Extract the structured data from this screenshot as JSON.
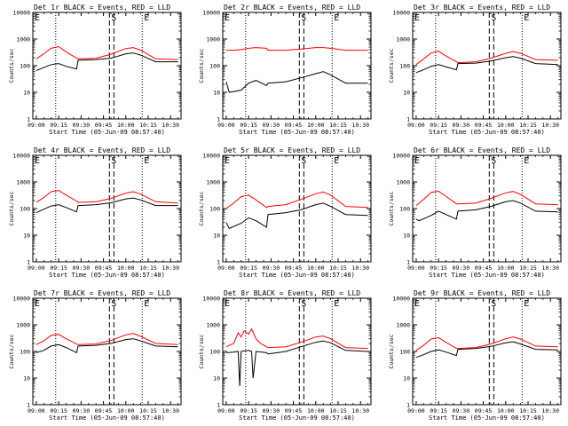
{
  "xlabel": "Start Time (05-Jun-09 08:57:40)",
  "ylabel": "Counts/sec",
  "x_tick_labels": [
    "09:00",
    "09:15",
    "09:30",
    "09:45",
    "10:00",
    "10:15",
    "10:30"
  ],
  "y_tick_labels": [
    "1",
    "10",
    "100",
    "1000",
    "10000"
  ],
  "markers": {
    "start": "S",
    "end": "E"
  },
  "colors": {
    "events": "#000000",
    "lld": "#ff0000"
  },
  "chart_data": [
    {
      "type": "line",
      "title": "Det 1r BLACK = Events, RED = LLD",
      "yscale": "log",
      "ylim": [
        1,
        10000
      ],
      "xlim": [
        "08:57:40",
        "10:37:00"
      ],
      "series": [
        {
          "name": "Events",
          "x": [
            "09:00",
            "09:05",
            "09:10",
            "09:15",
            "09:20",
            "09:27",
            "09:28",
            "09:40",
            "09:50",
            "10:00",
            "10:05",
            "10:10",
            "10:20",
            "10:35"
          ],
          "values": [
            65,
            85,
            110,
            120,
            95,
            75,
            160,
            170,
            190,
            280,
            300,
            250,
            140,
            140
          ]
        },
        {
          "name": "LLD",
          "x": [
            "09:00",
            "09:05",
            "09:10",
            "09:15",
            "09:20",
            "09:27",
            "09:28",
            "09:40",
            "09:50",
            "10:00",
            "10:05",
            "10:10",
            "10:20",
            "10:35"
          ],
          "values": [
            180,
            280,
            450,
            520,
            330,
            190,
            180,
            190,
            270,
            440,
            480,
            380,
            180,
            170
          ]
        }
      ]
    },
    {
      "type": "line",
      "title": "Det 2r BLACK = Events, RED = LLD",
      "yscale": "log",
      "ylim": [
        1,
        10000
      ],
      "xlim": [
        "08:57:40",
        "10:37:00"
      ],
      "series": [
        {
          "name": "Events",
          "x": [
            "09:00",
            "09:02",
            "09:10",
            "09:15",
            "09:20",
            "09:27",
            "09:28",
            "09:40",
            "09:50",
            "10:00",
            "10:05",
            "10:10",
            "10:20",
            "10:35"
          ],
          "values": [
            25,
            10,
            12,
            22,
            28,
            18,
            22,
            25,
            35,
            50,
            60,
            45,
            22,
            22
          ]
        },
        {
          "name": "LLD",
          "x": [
            "09:00",
            "09:05",
            "09:10",
            "09:15",
            "09:20",
            "09:27",
            "09:28",
            "09:40",
            "09:50",
            "10:00",
            "10:05",
            "10:10",
            "10:20",
            "10:35"
          ],
          "values": [
            380,
            380,
            400,
            450,
            480,
            450,
            380,
            380,
            420,
            480,
            480,
            450,
            380,
            380
          ]
        }
      ]
    },
    {
      "type": "line",
      "title": "Det 3r BLACK = Events, RED = LLD",
      "yscale": "log",
      "ylim": [
        1,
        10000
      ],
      "xlim": [
        "08:57:40",
        "10:37:00"
      ],
      "series": [
        {
          "name": "Events",
          "x": [
            "09:00",
            "09:05",
            "09:10",
            "09:15",
            "09:20",
            "09:27",
            "09:28",
            "09:40",
            "09:50",
            "10:00",
            "10:05",
            "10:10",
            "10:20",
            "10:35"
          ],
          "values": [
            55,
            70,
            95,
            110,
            90,
            70,
            120,
            125,
            150,
            200,
            220,
            190,
            120,
            110
          ]
        },
        {
          "name": "LLD",
          "x": [
            "09:00",
            "09:05",
            "09:10",
            "09:15",
            "09:20",
            "09:27",
            "09:28",
            "09:40",
            "09:50",
            "10:00",
            "10:05",
            "10:10",
            "10:20",
            "10:35"
          ],
          "values": [
            110,
            180,
            300,
            350,
            230,
            140,
            130,
            140,
            190,
            290,
            340,
            290,
            170,
            160
          ]
        }
      ]
    },
    {
      "type": "line",
      "title": "Det 4r BLACK = Events, RED = LLD",
      "yscale": "log",
      "ylim": [
        1,
        10000
      ],
      "xlim": [
        "08:57:40",
        "10:37:00"
      ],
      "series": [
        {
          "name": "Events",
          "x": [
            "09:00",
            "09:05",
            "09:10",
            "09:15",
            "09:20",
            "09:27",
            "09:28",
            "09:40",
            "09:50",
            "10:00",
            "10:05",
            "10:10",
            "10:20",
            "10:35"
          ],
          "values": [
            70,
            95,
            125,
            140,
            110,
            75,
            130,
            140,
            165,
            230,
            250,
            210,
            130,
            130
          ]
        },
        {
          "name": "LLD",
          "x": [
            "09:00",
            "09:05",
            "09:10",
            "09:15",
            "09:20",
            "09:27",
            "09:28",
            "09:40",
            "09:50",
            "10:00",
            "10:05",
            "10:10",
            "10:20",
            "10:35"
          ],
          "values": [
            170,
            260,
            430,
            480,
            320,
            190,
            170,
            180,
            240,
            380,
            430,
            350,
            180,
            160
          ]
        }
      ]
    },
    {
      "type": "line",
      "title": "Det 5r BLACK = Events, RED = LLD",
      "yscale": "log",
      "ylim": [
        1,
        10000
      ],
      "xlim": [
        "08:57:40",
        "10:37:00"
      ],
      "series": [
        {
          "name": "Events",
          "x": [
            "09:00",
            "09:02",
            "09:10",
            "09:15",
            "09:20",
            "09:27",
            "09:28",
            "09:40",
            "09:50",
            "10:00",
            "10:05",
            "10:10",
            "10:20",
            "10:35"
          ],
          "values": [
            30,
            18,
            28,
            45,
            35,
            20,
            60,
            70,
            90,
            140,
            160,
            120,
            60,
            55
          ]
        },
        {
          "name": "LLD",
          "x": [
            "09:00",
            "09:05",
            "09:10",
            "09:15",
            "09:20",
            "09:27",
            "09:28",
            "09:40",
            "09:50",
            "10:00",
            "10:05",
            "10:10",
            "10:20",
            "10:35"
          ],
          "values": [
            100,
            160,
            280,
            320,
            210,
            110,
            120,
            140,
            220,
            360,
            420,
            320,
            120,
            110
          ]
        }
      ]
    },
    {
      "type": "line",
      "title": "Det 6r BLACK = Events, RED = LLD",
      "yscale": "log",
      "ylim": [
        1,
        10000
      ],
      "xlim": [
        "08:57:40",
        "10:37:00"
      ],
      "series": [
        {
          "name": "Events",
          "x": [
            "09:00",
            "09:02",
            "09:10",
            "09:15",
            "09:20",
            "09:27",
            "09:28",
            "09:40",
            "09:50",
            "10:00",
            "10:05",
            "10:10",
            "10:20",
            "10:35"
          ],
          "values": [
            40,
            35,
            55,
            80,
            60,
            40,
            80,
            90,
            120,
            180,
            200,
            160,
            80,
            75
          ]
        },
        {
          "name": "LLD",
          "x": [
            "09:00",
            "09:05",
            "09:10",
            "09:15",
            "09:20",
            "09:27",
            "09:28",
            "09:40",
            "09:50",
            "10:00",
            "10:05",
            "10:10",
            "10:20",
            "10:35"
          ],
          "values": [
            130,
            220,
            400,
            450,
            290,
            150,
            150,
            160,
            240,
            390,
            440,
            340,
            150,
            140
          ]
        }
      ]
    },
    {
      "type": "line",
      "title": "Det 7r BLACK = Events, RED = LLD",
      "yscale": "log",
      "ylim": [
        1,
        10000
      ],
      "xlim": [
        "08:57:40",
        "10:37:00"
      ],
      "series": [
        {
          "name": "Events",
          "x": [
            "09:00",
            "09:05",
            "09:10",
            "09:15",
            "09:20",
            "09:27",
            "09:28",
            "09:40",
            "09:50",
            "10:00",
            "10:05",
            "10:10",
            "10:20",
            "10:35"
          ],
          "values": [
            90,
            110,
            160,
            180,
            140,
            90,
            160,
            170,
            200,
            280,
            300,
            250,
            160,
            150
          ]
        },
        {
          "name": "LLD",
          "x": [
            "09:00",
            "09:05",
            "09:10",
            "09:15",
            "09:20",
            "09:27",
            "09:28",
            "09:40",
            "09:50",
            "10:00",
            "10:05",
            "10:10",
            "10:20",
            "10:35"
          ],
          "values": [
            180,
            250,
            400,
            440,
            300,
            190,
            180,
            190,
            260,
            420,
            470,
            370,
            200,
            180
          ]
        }
      ]
    },
    {
      "type": "line",
      "title": "Det 8r BLACK = Events, RED = LLD",
      "yscale": "log",
      "ylim": [
        1,
        10000
      ],
      "xlim": [
        "08:57:40",
        "10:37:00"
      ],
      "series": [
        {
          "name": "Events",
          "x": [
            "09:00",
            "09:05",
            "09:08",
            "09:09",
            "09:10",
            "09:15",
            "09:17",
            "09:18",
            "09:20",
            "09:27",
            "09:28",
            "09:40",
            "09:50",
            "10:00",
            "10:05",
            "10:10",
            "10:20",
            "10:35"
          ],
          "values": [
            90,
            95,
            100,
            5,
            100,
            110,
            100,
            10,
            100,
            90,
            80,
            100,
            150,
            220,
            250,
            210,
            110,
            100
          ]
        },
        {
          "name": "LLD",
          "x": [
            "09:00",
            "09:05",
            "09:08",
            "09:10",
            "09:12",
            "09:15",
            "09:17",
            "09:20",
            "09:23",
            "09:27",
            "09:28",
            "09:40",
            "09:50",
            "10:00",
            "10:05",
            "10:10",
            "10:20",
            "10:35"
          ],
          "values": [
            150,
            200,
            500,
            350,
            600,
            450,
            700,
            300,
            200,
            150,
            140,
            150,
            220,
            350,
            380,
            300,
            140,
            130
          ]
        }
      ]
    },
    {
      "type": "line",
      "title": "Det 9r BLACK = Events, RED = LLD",
      "yscale": "log",
      "ylim": [
        1,
        10000
      ],
      "xlim": [
        "08:57:40",
        "10:37:00"
      ],
      "series": [
        {
          "name": "Events",
          "x": [
            "09:00",
            "09:05",
            "09:10",
            "09:15",
            "09:20",
            "09:27",
            "09:28",
            "09:40",
            "09:50",
            "10:00",
            "10:05",
            "10:10",
            "10:20",
            "10:35"
          ],
          "values": [
            60,
            75,
            100,
            115,
            95,
            70,
            120,
            130,
            155,
            210,
            230,
            190,
            120,
            115
          ]
        },
        {
          "name": "LLD",
          "x": [
            "09:00",
            "09:05",
            "09:10",
            "09:15",
            "09:20",
            "09:27",
            "09:28",
            "09:40",
            "09:50",
            "10:00",
            "10:05",
            "10:10",
            "10:20",
            "10:35"
          ],
          "values": [
            110,
            170,
            290,
            330,
            220,
            130,
            130,
            140,
            190,
            300,
            350,
            290,
            160,
            150
          ]
        }
      ]
    }
  ]
}
